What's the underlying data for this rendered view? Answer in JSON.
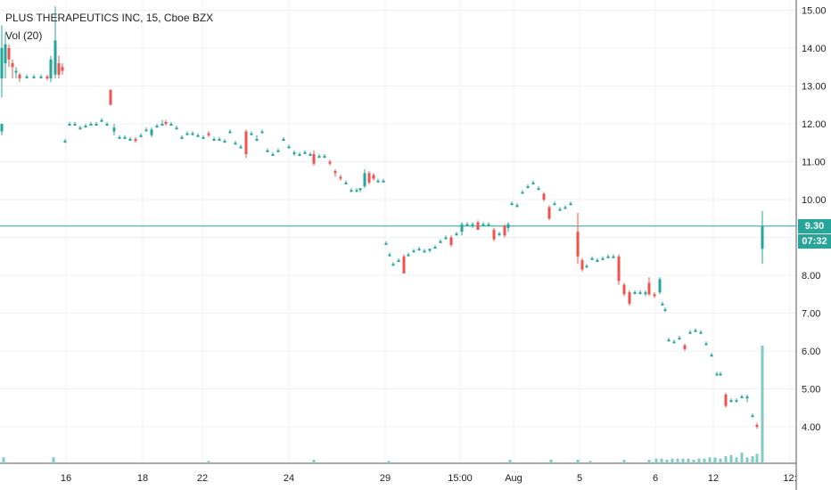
{
  "legend": {
    "title": "PLUS THERAPEUTICS INC, 15, Cboe BZX",
    "indicator": "Vol (20)"
  },
  "price_tag": {
    "price": "9.30",
    "countdown": "07:32"
  },
  "colors": {
    "up": "#26a69a",
    "down": "#ef5350",
    "grid": "#eef1f5",
    "last_line": "#26a69a",
    "volume": "#82cbc4"
  },
  "chart_data": {
    "type": "candlestick",
    "title": "PLUS THERAPEUTICS INC, 15, Cboe BZX",
    "ylim": [
      3.6,
      15.6
    ],
    "y_ticks": [
      "4.00",
      "5.00",
      "6.00",
      "7.00",
      "8.00",
      "9.00",
      "10.00",
      "11.00",
      "12.00",
      "13.00",
      "14.00",
      "15.00"
    ],
    "x_ticks": [
      "16",
      "18",
      "22",
      "24",
      "29",
      "15:00",
      "Aug",
      "5",
      "6",
      "12",
      "12:"
    ],
    "last_price": 9.3,
    "series": [
      {
        "name": "Vol (20)",
        "note": "volume bars at bottom"
      }
    ],
    "candles": [
      [
        2,
        13.2,
        14.6,
        12.7,
        14.0
      ],
      [
        6,
        13.6,
        14.4,
        13.2,
        14.1
      ],
      [
        10,
        14.0,
        14.1,
        13.5,
        13.7
      ],
      [
        14,
        13.6,
        13.7,
        13.2,
        13.5
      ],
      [
        18,
        13.4,
        13.5,
        13.2,
        13.4
      ],
      [
        22,
        13.3,
        13.35,
        13.1,
        13.2
      ],
      [
        30,
        13.25,
        13.3,
        13.2,
        13.25
      ],
      [
        38,
        13.25,
        13.3,
        13.2,
        13.25
      ],
      [
        46,
        13.25,
        13.3,
        13.2,
        13.25
      ],
      [
        53,
        13.25,
        13.3,
        13.15,
        13.2
      ],
      [
        57,
        13.2,
        13.8,
        13.1,
        13.7
      ],
      [
        62,
        13.3,
        15.1,
        13.2,
        14.2
      ],
      [
        66,
        13.6,
        13.8,
        13.2,
        13.3
      ],
      [
        70,
        13.5,
        13.6,
        13.3,
        13.4
      ],
      [
        2,
        11.8,
        12.0,
        11.7,
        12.0
      ],
      [
        73,
        11.55,
        11.6,
        11.5,
        11.55
      ],
      [
        78,
        12.0,
        12.05,
        11.95,
        12.0
      ],
      [
        84,
        12.0,
        12.05,
        11.95,
        12.0
      ],
      [
        90,
        11.9,
        11.95,
        11.85,
        11.9
      ],
      [
        96,
        11.95,
        12.0,
        11.9,
        11.95
      ],
      [
        102,
        12.0,
        12.05,
        11.95,
        12.0
      ],
      [
        108,
        12.0,
        12.05,
        11.95,
        12.0
      ],
      [
        114,
        12.1,
        12.15,
        12.05,
        12.1
      ],
      [
        120,
        12.0,
        12.05,
        11.95,
        12.0
      ],
      [
        124,
        12.9,
        12.9,
        12.5,
        12.5
      ],
      [
        128,
        11.8,
        12.0,
        11.7,
        11.9
      ],
      [
        134,
        11.65,
        11.7,
        11.6,
        11.65
      ],
      [
        140,
        11.65,
        11.7,
        11.6,
        11.65
      ],
      [
        146,
        11.6,
        11.65,
        11.55,
        11.6
      ],
      [
        152,
        11.6,
        11.65,
        11.5,
        11.55
      ],
      [
        158,
        11.7,
        11.75,
        11.65,
        11.7
      ],
      [
        164,
        11.85,
        11.9,
        11.8,
        11.85
      ],
      [
        170,
        11.7,
        11.9,
        11.65,
        11.85
      ],
      [
        176,
        11.95,
        12.0,
        11.9,
        11.95
      ],
      [
        182,
        12.0,
        12.1,
        11.95,
        12.0
      ],
      [
        186,
        12.05,
        12.1,
        11.95,
        12.0
      ],
      [
        192,
        12.0,
        12.05,
        11.95,
        12.0
      ],
      [
        198,
        11.9,
        11.95,
        11.85,
        11.9
      ],
      [
        204,
        11.65,
        11.7,
        11.6,
        11.65
      ],
      [
        210,
        11.75,
        11.8,
        11.7,
        11.75
      ],
      [
        216,
        11.75,
        11.8,
        11.7,
        11.75
      ],
      [
        222,
        11.7,
        11.75,
        11.65,
        11.7
      ],
      [
        228,
        11.65,
        11.7,
        11.6,
        11.65
      ],
      [
        234,
        11.75,
        11.8,
        11.65,
        11.7
      ],
      [
        240,
        11.6,
        11.65,
        11.55,
        11.6
      ],
      [
        246,
        11.6,
        11.65,
        11.55,
        11.6
      ],
      [
        252,
        11.55,
        11.6,
        11.5,
        11.55
      ],
      [
        258,
        11.8,
        11.85,
        11.75,
        11.8
      ],
      [
        264,
        11.5,
        11.55,
        11.45,
        11.5
      ],
      [
        270,
        11.4,
        11.45,
        11.35,
        11.4
      ],
      [
        276,
        11.8,
        11.85,
        11.1,
        11.2
      ],
      [
        282,
        11.75,
        11.8,
        11.7,
        11.75
      ],
      [
        288,
        11.6,
        11.7,
        11.55,
        11.6
      ],
      [
        294,
        11.8,
        11.85,
        11.75,
        11.8
      ],
      [
        300,
        11.3,
        11.35,
        11.25,
        11.3
      ],
      [
        306,
        11.2,
        11.25,
        11.15,
        11.2
      ],
      [
        312,
        11.3,
        11.35,
        11.25,
        11.3
      ],
      [
        318,
        11.6,
        11.65,
        11.55,
        11.6
      ],
      [
        324,
        11.4,
        11.45,
        11.35,
        11.4
      ],
      [
        330,
        11.2,
        11.3,
        11.15,
        11.25
      ],
      [
        336,
        11.2,
        11.25,
        11.15,
        11.2
      ],
      [
        342,
        11.25,
        11.3,
        11.2,
        11.25
      ],
      [
        348,
        11.2,
        11.25,
        11.15,
        11.2
      ],
      [
        352,
        11.2,
        11.3,
        10.9,
        10.95
      ],
      [
        358,
        11.15,
        11.2,
        11.1,
        11.15
      ],
      [
        364,
        11.15,
        11.2,
        11.1,
        11.15
      ],
      [
        370,
        11.0,
        11.05,
        10.9,
        10.95
      ],
      [
        376,
        10.75,
        10.8,
        10.6,
        10.7
      ],
      [
        382,
        10.6,
        10.65,
        10.5,
        10.55
      ],
      [
        388,
        10.45,
        10.5,
        10.4,
        10.45
      ],
      [
        394,
        10.25,
        10.3,
        10.2,
        10.25
      ],
      [
        400,
        10.25,
        10.3,
        10.2,
        10.25
      ],
      [
        404,
        10.25,
        10.3,
        10.2,
        10.3
      ],
      [
        409,
        10.35,
        10.8,
        10.3,
        10.7
      ],
      [
        414,
        10.7,
        10.75,
        10.4,
        10.45
      ],
      [
        419,
        10.65,
        10.7,
        10.5,
        10.55
      ],
      [
        424,
        10.5,
        10.55,
        10.45,
        10.5
      ],
      [
        430,
        10.5,
        10.55,
        10.45,
        10.5
      ],
      [
        433,
        8.85,
        8.9,
        8.8,
        8.85
      ],
      [
        437,
        8.55,
        8.6,
        8.5,
        8.55
      ],
      [
        441,
        8.3,
        8.35,
        8.25,
        8.3
      ],
      [
        447,
        8.4,
        8.45,
        8.35,
        8.4
      ],
      [
        453,
        8.5,
        8.55,
        8.05,
        8.05
      ],
      [
        458,
        8.55,
        8.6,
        8.5,
        8.55
      ],
      [
        464,
        8.65,
        8.7,
        8.6,
        8.65
      ],
      [
        470,
        8.7,
        8.75,
        8.65,
        8.7
      ],
      [
        476,
        8.65,
        8.7,
        8.6,
        8.65
      ],
      [
        482,
        8.65,
        8.7,
        8.6,
        8.7
      ],
      [
        488,
        8.75,
        8.8,
        8.7,
        8.75
      ],
      [
        494,
        8.9,
        8.95,
        8.85,
        8.9
      ],
      [
        500,
        9.0,
        9.05,
        8.95,
        9.0
      ],
      [
        506,
        9.0,
        9.05,
        8.75,
        8.8
      ],
      [
        512,
        9.1,
        9.15,
        9.05,
        9.1
      ],
      [
        518,
        9.15,
        9.4,
        9.05,
        9.35
      ],
      [
        524,
        9.35,
        9.4,
        9.3,
        9.35
      ],
      [
        530,
        9.3,
        9.4,
        9.25,
        9.35
      ],
      [
        536,
        9.4,
        9.45,
        9.2,
        9.2
      ],
      [
        542,
        9.35,
        9.4,
        9.3,
        9.35
      ],
      [
        548,
        9.35,
        9.4,
        9.3,
        9.35
      ],
      [
        554,
        9.2,
        9.25,
        8.9,
        8.95
      ],
      [
        560,
        9.1,
        9.15,
        9.05,
        9.1
      ],
      [
        566,
        9.3,
        9.35,
        9.0,
        9.05
      ],
      [
        570,
        9.25,
        9.4,
        9.15,
        9.35
      ],
      [
        574,
        9.9,
        9.95,
        9.85,
        9.9
      ],
      [
        580,
        9.85,
        9.9,
        9.8,
        9.85
      ],
      [
        586,
        10.2,
        10.25,
        10.15,
        10.2
      ],
      [
        592,
        10.35,
        10.4,
        10.3,
        10.35
      ],
      [
        598,
        10.45,
        10.5,
        10.4,
        10.45
      ],
      [
        604,
        10.3,
        10.35,
        10.25,
        10.3
      ],
      [
        610,
        10.15,
        10.2,
        9.95,
        10.0
      ],
      [
        616,
        9.8,
        9.85,
        9.45,
        9.5
      ],
      [
        622,
        9.9,
        9.95,
        9.85,
        9.9
      ],
      [
        628,
        9.75,
        9.8,
        9.7,
        9.75
      ],
      [
        634,
        9.8,
        9.85,
        9.75,
        9.8
      ],
      [
        640,
        9.9,
        9.95,
        9.85,
        9.9
      ],
      [
        648,
        9.15,
        9.65,
        8.3,
        8.5
      ],
      [
        653,
        8.4,
        8.45,
        8.1,
        8.15
      ],
      [
        658,
        8.25,
        8.3,
        8.2,
        8.25
      ],
      [
        664,
        8.45,
        8.5,
        8.4,
        8.45
      ],
      [
        670,
        8.4,
        8.45,
        8.35,
        8.4
      ],
      [
        676,
        8.45,
        8.5,
        8.4,
        8.45
      ],
      [
        682,
        8.5,
        8.55,
        8.45,
        8.5
      ],
      [
        688,
        8.5,
        8.55,
        8.45,
        8.5
      ],
      [
        694,
        8.5,
        8.55,
        7.75,
        7.85
      ],
      [
        700,
        7.75,
        7.8,
        7.45,
        7.5
      ],
      [
        706,
        7.55,
        7.6,
        7.2,
        7.25
      ],
      [
        712,
        7.55,
        7.6,
        7.5,
        7.55
      ],
      [
        718,
        7.55,
        7.6,
        7.5,
        7.55
      ],
      [
        724,
        7.5,
        7.6,
        7.45,
        7.55
      ],
      [
        728,
        7.8,
        7.95,
        7.45,
        7.5
      ],
      [
        734,
        7.5,
        7.55,
        7.4,
        7.45
      ],
      [
        740,
        7.55,
        7.95,
        7.5,
        7.9
      ],
      [
        743,
        7.25,
        7.3,
        7.2,
        7.25
      ],
      [
        746,
        7.1,
        7.15,
        7.05,
        7.1
      ],
      [
        750,
        6.3,
        6.35,
        6.25,
        6.3
      ],
      [
        756,
        6.25,
        6.3,
        6.2,
        6.25
      ],
      [
        762,
        6.35,
        6.4,
        6.3,
        6.35
      ],
      [
        768,
        6.15,
        6.2,
        6.0,
        6.05
      ],
      [
        774,
        6.5,
        6.55,
        6.45,
        6.5
      ],
      [
        780,
        6.55,
        6.6,
        6.5,
        6.55
      ],
      [
        786,
        6.5,
        6.55,
        6.45,
        6.5
      ],
      [
        792,
        6.2,
        6.25,
        6.15,
        6.2
      ],
      [
        798,
        5.9,
        5.95,
        5.85,
        5.9
      ],
      [
        804,
        5.4,
        5.45,
        5.35,
        5.4
      ],
      [
        808,
        5.4,
        5.45,
        5.35,
        5.4
      ],
      [
        814,
        4.85,
        4.9,
        4.5,
        4.55
      ],
      [
        820,
        4.7,
        4.75,
        4.65,
        4.7
      ],
      [
        826,
        4.7,
        4.75,
        4.65,
        4.7
      ],
      [
        832,
        4.8,
        4.85,
        4.75,
        4.8
      ],
      [
        838,
        4.75,
        4.85,
        4.65,
        4.8
      ],
      [
        844,
        4.3,
        4.35,
        4.25,
        4.3
      ],
      [
        849,
        4.05,
        4.1,
        3.95,
        4.0
      ],
      [
        855,
        8.7,
        9.7,
        8.3,
        9.3
      ]
    ],
    "volume": [
      [
        4,
        5
      ],
      [
        60,
        5
      ],
      [
        234,
        2
      ],
      [
        352,
        3
      ],
      [
        436,
        2
      ],
      [
        572,
        3
      ],
      [
        618,
        3
      ],
      [
        648,
        3
      ],
      [
        662,
        2
      ],
      [
        700,
        3
      ],
      [
        728,
        3
      ],
      [
        736,
        4
      ],
      [
        742,
        4
      ],
      [
        748,
        3
      ],
      [
        754,
        4
      ],
      [
        760,
        4
      ],
      [
        766,
        4
      ],
      [
        772,
        4
      ],
      [
        778,
        3
      ],
      [
        784,
        4
      ],
      [
        790,
        4
      ],
      [
        796,
        5
      ],
      [
        802,
        5
      ],
      [
        808,
        4
      ],
      [
        814,
        6
      ],
      [
        820,
        7
      ],
      [
        826,
        5
      ],
      [
        832,
        9
      ],
      [
        838,
        5
      ],
      [
        844,
        6
      ],
      [
        849,
        8
      ],
      [
        855,
        100
      ]
    ]
  }
}
